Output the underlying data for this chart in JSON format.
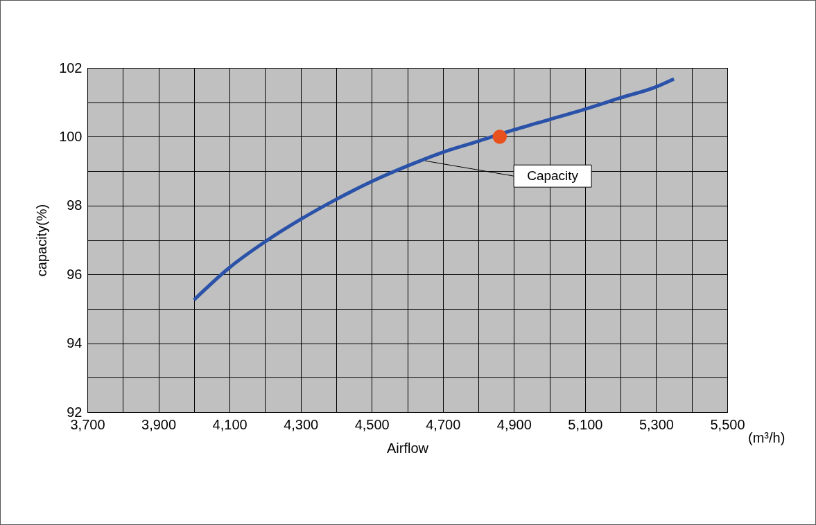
{
  "chart_data": {
    "type": "line",
    "xlabel": "Airflow",
    "ylabel": "capacity(%)",
    "series": [
      {
        "x": [
          4000,
          4100,
          4200,
          4300,
          4400,
          4500,
          4600,
          4700,
          4800,
          4900,
          5000,
          5100,
          5200,
          5300,
          5350
        ],
        "values": [
          95.26,
          96.2,
          96.95,
          97.6,
          98.18,
          98.7,
          99.15,
          99.55,
          99.87,
          100.2,
          100.5,
          100.8,
          101.13,
          101.45,
          101.68
        ],
        "color": "#2a52a8"
      },
      {
        "type": "scatter",
        "x": [
          4860
        ],
        "values": [
          100
        ],
        "color": "#e8501e"
      }
    ],
    "xlim": [
      3700,
      5500
    ],
    "xticks": [
      {
        "value": 3700,
        "label": "3,700"
      },
      {
        "value": 3800,
        "label": null
      },
      {
        "value": 3900,
        "label": "3,900"
      },
      {
        "value": 4000,
        "label": null
      },
      {
        "value": 4100,
        "label": "4,100"
      },
      {
        "value": 4200,
        "label": null
      },
      {
        "value": 4300,
        "label": "4,300"
      },
      {
        "value": 4400,
        "label": null
      },
      {
        "value": 4500,
        "label": "4,500"
      },
      {
        "value": 4600,
        "label": null
      },
      {
        "value": 4700,
        "label": "4,700"
      },
      {
        "value": 4800,
        "label": null
      },
      {
        "value": 4900,
        "label": "4,900"
      },
      {
        "value": 5000,
        "label": null
      },
      {
        "value": 5100,
        "label": "5,100"
      },
      {
        "value": 5200,
        "label": null
      },
      {
        "value": 5300,
        "label": "5,300"
      },
      {
        "value": 5400,
        "label": null
      },
      {
        "value": 5500,
        "label": "5,500"
      }
    ],
    "ylim": [
      92,
      102
    ],
    "yticks": [
      92,
      {
        "value": 93,
        "label": null
      },
      94,
      {
        "value": 95,
        "label": null
      },
      96,
      {
        "value": 97,
        "label": null
      },
      98,
      {
        "value": 99,
        "label": null
      },
      100,
      {
        "value": 101,
        "label": null
      },
      102
    ],
    "grid": true,
    "line_style": "solid",
    "annotations": [
      {
        "text": "Capacity",
        "x": 4650,
        "y": 99.3
      },
      "(m³/h)"
    ]
  }
}
